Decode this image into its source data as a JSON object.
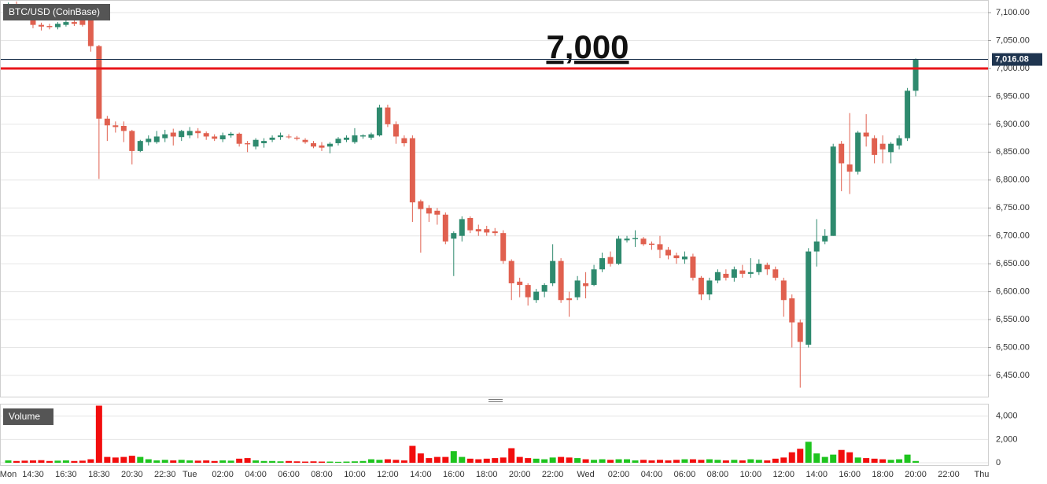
{
  "chart_data": {
    "type": "candlestick",
    "title": "BTC/USD (CoinBase)",
    "categories": [
      "Mon",
      null,
      null,
      "14:30",
      null,
      null,
      null,
      "16:30",
      null,
      null,
      null,
      "18:30",
      null,
      null,
      null,
      "20:30",
      null,
      null,
      null,
      "22:30",
      null,
      null,
      "Tue",
      null,
      null,
      null,
      "02:00",
      null,
      null,
      null,
      "04:00",
      null,
      null,
      null,
      "06:00",
      null,
      null,
      null,
      "08:00",
      null,
      null,
      null,
      "10:00",
      null,
      null,
      null,
      "12:00",
      null,
      null,
      null,
      "14:00",
      null,
      null,
      null,
      "16:00",
      null,
      null,
      null,
      "18:00",
      null,
      null,
      null,
      "20:00",
      null,
      null,
      null,
      "22:00",
      null,
      null,
      null,
      "Wed",
      null,
      null,
      null,
      "02:00",
      null,
      null,
      null,
      "04:00",
      null,
      null,
      null,
      "06:00",
      null,
      null,
      null,
      "08:00",
      null,
      null,
      null,
      "10:00",
      null,
      null,
      null,
      "12:00",
      null,
      null,
      null,
      "14:00",
      null,
      null,
      null,
      "16:00",
      null,
      null,
      null,
      "18:00",
      null,
      null,
      null,
      "20:00",
      null,
      null,
      null,
      "22:00",
      null,
      null,
      null,
      "Thu"
    ],
    "open": [
      7092,
      7115,
      7105,
      7100,
      7078,
      7076,
      7074,
      7078,
      7083,
      7088,
      7100,
      7040,
      6910,
      6898,
      6897,
      6888,
      6852,
      6868,
      6868,
      6875,
      6885,
      6877,
      6880,
      6888,
      6884,
      6878,
      6873,
      6880,
      6883,
      6866,
      6860,
      6866,
      6872,
      6877,
      6878,
      6876,
      6872,
      6866,
      6862,
      6860,
      6866,
      6872,
      6868,
      6878,
      6876,
      6880,
      6930,
      6900,
      6875,
      6875,
      6762,
      6750,
      6745,
      6738,
      6695,
      6700,
      6732,
      6712,
      6712,
      6708,
      6705,
      6655,
      6618,
      6612,
      6585,
      6600,
      6615,
      6655,
      6588,
      6590,
      6615,
      6612,
      6640,
      6662,
      6650,
      6692,
      6694,
      6695,
      6686,
      6685,
      6675,
      6665,
      6658,
      6663,
      6625,
      6595,
      6620,
      6632,
      6625,
      6638,
      6632,
      6635,
      6648,
      6640,
      6620,
      6588,
      6545,
      6505,
      6672,
      6690,
      6700,
      6865,
      6828,
      6815,
      6885,
      6875,
      6865,
      6850,
      6862,
      6875,
      6960,
      null,
      null,
      null,
      null,
      null,
      null,
      null,
      null
    ],
    "high": [
      7118,
      7120,
      7108,
      7105,
      7082,
      7080,
      7083,
      7090,
      7086,
      7100,
      7105,
      7042,
      6915,
      6905,
      6905,
      6890,
      6872,
      6880,
      6888,
      6890,
      6892,
      6890,
      6895,
      6893,
      6887,
      6882,
      6885,
      6886,
      6885,
      6870,
      6875,
      6875,
      6880,
      6885,
      6882,
      6879,
      6875,
      6870,
      6868,
      6868,
      6877,
      6880,
      6893,
      6882,
      6885,
      6935,
      6935,
      6905,
      6880,
      6880,
      6765,
      6755,
      6750,
      6742,
      6708,
      6735,
      6735,
      6720,
      6718,
      6714,
      6710,
      6658,
      6625,
      6615,
      6605,
      6615,
      6685,
      6660,
      6600,
      6628,
      6635,
      6648,
      6670,
      6672,
      6700,
      6700,
      6710,
      6698,
      6690,
      6700,
      6680,
      6670,
      6672,
      6668,
      6628,
      6625,
      6640,
      6640,
      6645,
      6648,
      6660,
      6658,
      6652,
      6645,
      6625,
      6595,
      6550,
      6678,
      6730,
      6712,
      6865,
      6870,
      6920,
      6888,
      6918,
      6880,
      6880,
      6868,
      6880,
      6965,
      7018,
      null,
      null,
      null,
      null,
      null,
      null,
      null,
      null
    ],
    "low": [
      7088,
      7100,
      7098,
      7072,
      7068,
      7070,
      7070,
      7075,
      7076,
      7075,
      7030,
      6802,
      6870,
      6885,
      6868,
      6828,
      6850,
      6862,
      6865,
      6868,
      6862,
      6870,
      6875,
      6875,
      6872,
      6870,
      6868,
      6876,
      6860,
      6850,
      6855,
      6858,
      6868,
      6872,
      6874,
      6871,
      6865,
      6857,
      6852,
      6848,
      6862,
      6868,
      6865,
      6874,
      6872,
      6878,
      6895,
      6865,
      6860,
      6725,
      6670,
      6725,
      6720,
      6685,
      6628,
      6690,
      6705,
      6700,
      6700,
      6700,
      6650,
      6585,
      6590,
      6575,
      6580,
      6590,
      6610,
      6580,
      6555,
      6585,
      6588,
      6610,
      6635,
      6645,
      6648,
      6688,
      6680,
      6682,
      6675,
      6660,
      6658,
      6650,
      6650,
      6620,
      6585,
      6585,
      6615,
      6620,
      6618,
      6625,
      6625,
      6630,
      6630,
      6620,
      6555,
      6500,
      6428,
      6500,
      6645,
      6685,
      6700,
      6780,
      6775,
      6810,
      6860,
      6830,
      6830,
      6830,
      6855,
      6870,
      6950,
      null,
      null,
      null,
      null,
      null,
      null,
      null,
      null
    ],
    "close": [
      7110,
      7105,
      7100,
      7078,
      7075,
      7074,
      7080,
      7083,
      7080,
      7078,
      7040,
      6910,
      6898,
      6895,
      6888,
      6852,
      6870,
      6874,
      6878,
      6882,
      6878,
      6888,
      6888,
      6884,
      6878,
      6874,
      6880,
      6883,
      6865,
      6864,
      6872,
      6870,
      6876,
      6880,
      6877,
      6874,
      6868,
      6860,
      6858,
      6865,
      6874,
      6876,
      6880,
      6880,
      6882,
      6930,
      6900,
      6878,
      6866,
      6760,
      6748,
      6740,
      6738,
      6690,
      6705,
      6730,
      6710,
      6708,
      6706,
      6705,
      6655,
      6615,
      6612,
      6590,
      6600,
      6612,
      6655,
      6585,
      6585,
      6620,
      6610,
      6640,
      6660,
      6650,
      6695,
      6695,
      6696,
      6685,
      6684,
      6675,
      6665,
      6660,
      6663,
      6625,
      6595,
      6620,
      6635,
      6625,
      6640,
      6632,
      6635,
      6650,
      6640,
      6625,
      6585,
      6545,
      6510,
      6672,
      6690,
      6700,
      6860,
      6830,
      6815,
      6885,
      6878,
      6845,
      6855,
      6865,
      6875,
      6960,
      7016.08,
      null,
      null,
      null,
      null,
      null,
      null,
      null,
      null
    ],
    "up_color": "#2e8a6e",
    "down_color": "#e0604f",
    "ylim": [
      6410.5,
      7122.6
    ],
    "yticks": [
      {
        "value": 6450,
        "label": "6,450.00"
      },
      {
        "value": 6500,
        "label": "6,500.00"
      },
      {
        "value": 6550,
        "label": "6,550.00"
      },
      {
        "value": 6600,
        "label": "6,600.00"
      },
      {
        "value": 6650,
        "label": "6,650.00"
      },
      {
        "value": 6700,
        "label": "6,700.00"
      },
      {
        "value": 6750,
        "label": "6,750.00"
      },
      {
        "value": 6800,
        "label": "6,800.00"
      },
      {
        "value": 6850,
        "label": "6,850.00"
      },
      {
        "value": 6900,
        "label": "6,900.00"
      },
      {
        "value": 6950,
        "label": "6,950.00"
      },
      {
        "value": 7000,
        "label": "7,000.00"
      },
      {
        "value": 7050,
        "label": "7,050.00"
      },
      {
        "value": 7100,
        "label": "7,100.00"
      }
    ],
    "grid": true,
    "price_line": {
      "value": 7016.08,
      "label": "7,016.08",
      "color": "#1f3550"
    },
    "annotation": {
      "value": 7000,
      "label": "7,000",
      "color": "#e8161b"
    },
    "volume": {
      "title": "Volume",
      "values": [
        200,
        150,
        180,
        200,
        220,
        150,
        180,
        200,
        150,
        180,
        300,
        4900,
        500,
        450,
        500,
        600,
        500,
        300,
        200,
        250,
        200,
        250,
        200,
        180,
        200,
        150,
        200,
        180,
        350,
        400,
        200,
        150,
        150,
        120,
        150,
        120,
        100,
        120,
        100,
        100,
        80,
        100,
        120,
        150,
        300,
        250,
        300,
        250,
        200,
        1450,
        800,
        400,
        500,
        500,
        1000,
        500,
        350,
        300,
        350,
        400,
        450,
        1250,
        500,
        400,
        350,
        300,
        450,
        500,
        450,
        400,
        300,
        250,
        300,
        250,
        300,
        300,
        200,
        250,
        200,
        250,
        200,
        250,
        300,
        300,
        250,
        300,
        250,
        200,
        250,
        200,
        300,
        250,
        200,
        350,
        450,
        900,
        1200,
        1800,
        800,
        500,
        700,
        1100,
        900,
        450,
        400,
        350,
        300,
        250,
        300,
        700,
        150,
        null,
        null,
        null,
        null,
        null,
        null,
        null,
        null
      ],
      "up_color": "#1ec41e",
      "down_color": "#f20d0d",
      "ylim": [
        0,
        5000
      ],
      "yticks": [
        0,
        {
          "value": 2000,
          "label": "2,000"
        },
        {
          "value": 4000,
          "label": "4,000"
        }
      ]
    }
  }
}
